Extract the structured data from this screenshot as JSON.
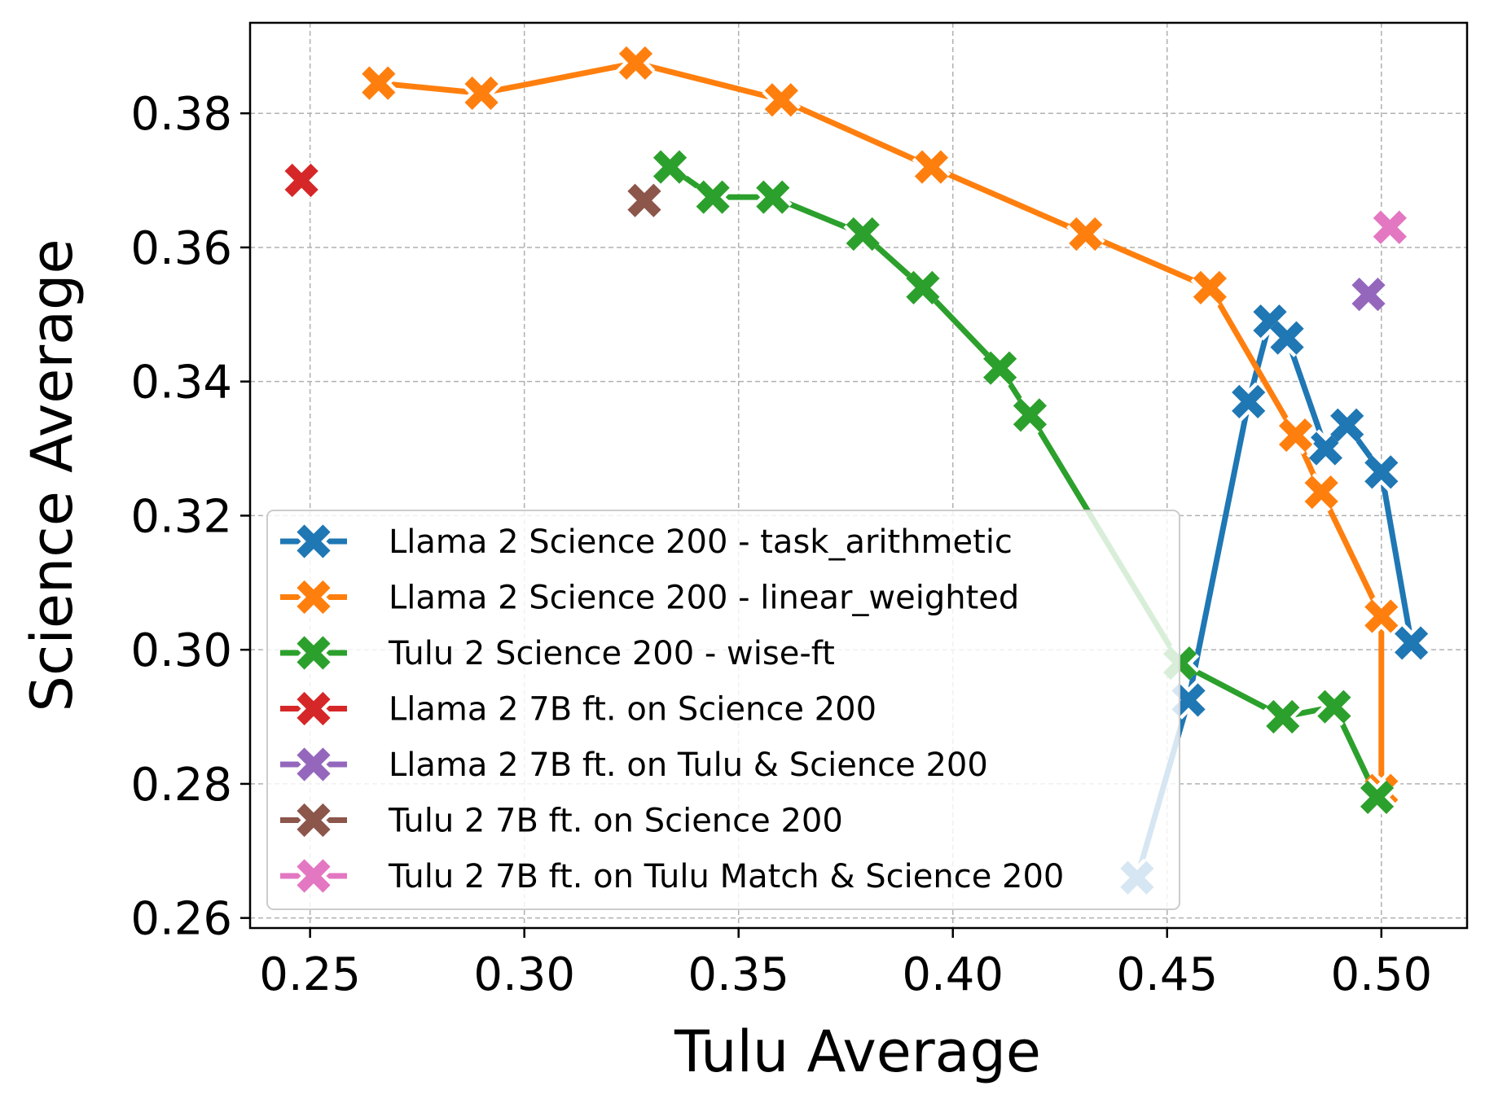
{
  "chart_data": {
    "type": "line",
    "xlabel": "Tulu Average",
    "ylabel": "Science Average",
    "xlim": [
      0.236,
      0.52
    ],
    "ylim": [
      0.2585,
      0.3935
    ],
    "xticks": [
      "0.25",
      "0.30",
      "0.35",
      "0.40",
      "0.45",
      "0.50"
    ],
    "yticks": [
      "0.26",
      "0.28",
      "0.30",
      "0.32",
      "0.34",
      "0.36",
      "0.38"
    ],
    "grid": true,
    "legend_position": "lower-left",
    "marker": "X",
    "series": [
      {
        "name": "Llama 2 Science 200 - task_arithmetic",
        "color": "#1f77b4",
        "x": [
          0.443,
          0.455,
          0.469,
          0.474,
          0.478,
          0.487,
          0.492,
          0.5,
          0.507
        ],
        "y": [
          0.266,
          0.2925,
          0.337,
          0.349,
          0.3465,
          0.33,
          0.3335,
          0.3265,
          0.301
        ]
      },
      {
        "name": "Llama 2 Science 200 - linear_weighted",
        "color": "#ff7f0e",
        "x": [
          0.266,
          0.29,
          0.326,
          0.36,
          0.395,
          0.431,
          0.46,
          0.48,
          0.486,
          0.5,
          0.5
        ],
        "y": [
          0.3845,
          0.383,
          0.3875,
          0.382,
          0.372,
          0.362,
          0.354,
          0.332,
          0.3235,
          0.305,
          0.279
        ]
      },
      {
        "name": "Tulu 2 Science 200 - wise-ft",
        "color": "#2ca02c",
        "x": [
          0.334,
          0.344,
          0.358,
          0.379,
          0.393,
          0.411,
          0.418,
          0.453,
          0.477,
          0.489,
          0.499
        ],
        "y": [
          0.372,
          0.3675,
          0.3675,
          0.362,
          0.354,
          0.342,
          0.335,
          0.298,
          0.29,
          0.2915,
          0.278
        ]
      },
      {
        "name": "Llama 2 7B ft. on Science 200",
        "color": "#d62728",
        "x": [
          0.248
        ],
        "y": [
          0.37
        ]
      },
      {
        "name": "Llama 2 7B ft. on Tulu & Science 200",
        "color": "#9467bd",
        "x": [
          0.497
        ],
        "y": [
          0.353
        ]
      },
      {
        "name": "Tulu 2 7B ft. on Science 200",
        "color": "#8c564b",
        "x": [
          0.328
        ],
        "y": [
          0.367
        ]
      },
      {
        "name": "Tulu 2 7B ft. on Tulu Match & Science 200",
        "color": "#e377c2",
        "x": [
          0.502
        ],
        "y": [
          0.363
        ]
      }
    ]
  }
}
